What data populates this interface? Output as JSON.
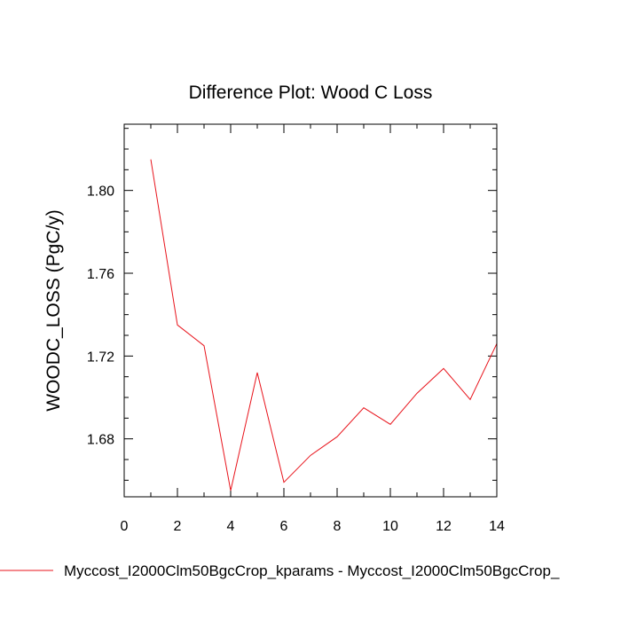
{
  "chart_data": {
    "type": "line",
    "title": "Difference Plot: Wood C Loss",
    "xlabel": "",
    "ylabel": "WOODC_LOSS  (PgC/y)",
    "xlim": [
      0,
      14
    ],
    "ylim": [
      1.652,
      1.832
    ],
    "x_ticks": [
      0,
      2,
      4,
      6,
      8,
      10,
      12,
      14
    ],
    "x_minor_step": 1,
    "y_ticks": [
      1.68,
      1.72,
      1.76,
      1.8
    ],
    "y_tick_labels": [
      "1.68",
      "1.72",
      "1.76",
      "1.80"
    ],
    "y_minor_step": 0.01,
    "grid": false,
    "legend_position": "bottom",
    "series": [
      {
        "name": "Myccost_I2000Clm50BgcCrop_kparams - Myccost_I2000Clm50BgcCrop_",
        "color": "#e8131b",
        "x": [
          1,
          2,
          3,
          4,
          5,
          6,
          7,
          8,
          9,
          10,
          11,
          12,
          13,
          14
        ],
        "y": [
          1.815,
          1.735,
          1.725,
          1.655,
          1.712,
          1.659,
          1.672,
          1.681,
          1.695,
          1.687,
          1.702,
          1.714,
          1.699,
          1.726
        ]
      }
    ]
  }
}
